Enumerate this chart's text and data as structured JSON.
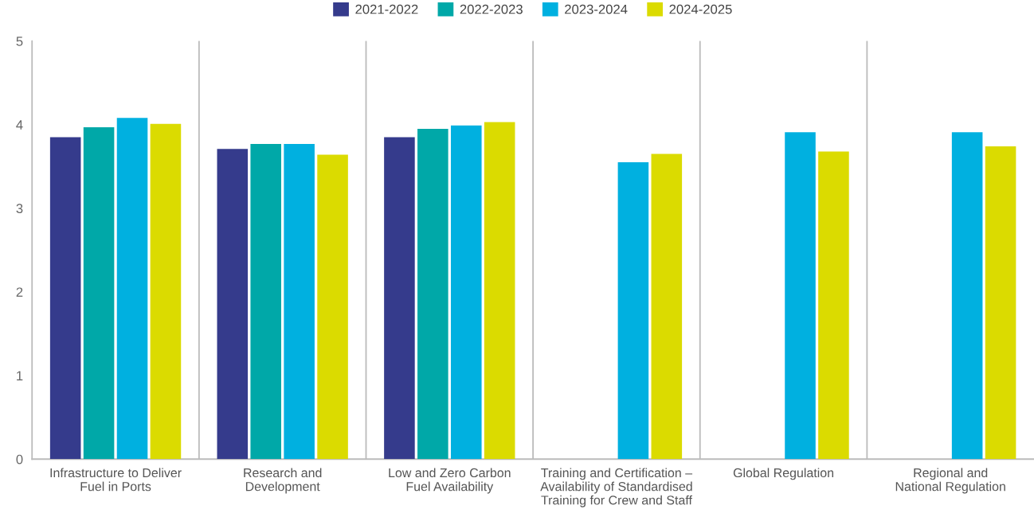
{
  "chart_data": {
    "type": "bar",
    "categories": [
      "Infrastructure to Deliver\nFuel in Ports",
      "Research and\nDevelopment",
      "Low and Zero Carbon\nFuel Availability",
      "Training and Certification –\nAvailability of Standardised\nTraining for Crew and Staff",
      "Global Regulation",
      "Regional and\nNational Regulation"
    ],
    "series": [
      {
        "name": "2021-2022",
        "color": "#353b8c",
        "values": [
          3.85,
          3.71,
          3.85,
          null,
          null,
          null
        ]
      },
      {
        "name": "2022-2023",
        "color": "#00a8a8",
        "values": [
          3.97,
          3.77,
          3.95,
          null,
          null,
          null
        ]
      },
      {
        "name": "2023-2024",
        "color": "#00b0e0",
        "values": [
          4.08,
          3.77,
          3.99,
          3.55,
          3.91,
          3.91
        ]
      },
      {
        "name": "2024-2025",
        "color": "#dbdb00",
        "values": [
          4.01,
          3.64,
          4.03,
          3.65,
          3.68,
          3.74
        ]
      }
    ],
    "ylim": [
      0,
      5
    ],
    "yticks": [
      0,
      1,
      2,
      3,
      4,
      5
    ],
    "grid": "x",
    "legend": "top"
  }
}
